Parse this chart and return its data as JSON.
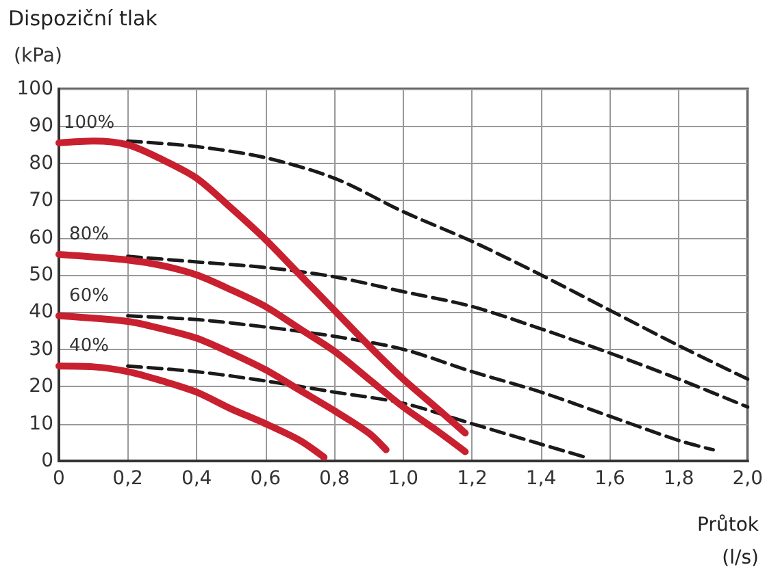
{
  "chart_data": {
    "type": "line",
    "title": "Dispoziční tlak",
    "ylabel": "(kPa)",
    "xlabel": "Průtok\n(l/s)",
    "xlim": [
      0,
      2
    ],
    "xticks": [
      0,
      {
        "value": 0.2,
        "label": "0,2"
      },
      {
        "value": 0.4,
        "label": "0,4"
      },
      {
        "value": 0.6,
        "label": "0,6"
      },
      {
        "value": 0.8,
        "label": "0,8"
      },
      {
        "value": 1,
        "label": "1,0"
      },
      {
        "value": 1.2,
        "label": "1,2"
      },
      {
        "value": 1.4,
        "label": "1,4"
      },
      {
        "value": 1.6,
        "label": "1,6"
      },
      {
        "value": 1.8,
        "label": "1,8"
      },
      {
        "value": 2,
        "label": "2,0"
      }
    ],
    "ylim": [
      0,
      100
    ],
    "yticks": [
      0,
      10,
      20,
      30,
      40,
      50,
      60,
      70,
      80,
      90,
      100
    ],
    "grid": true,
    "marker": "none",
    "series": [
      {
        "name": "100%",
        "color": "#c8202f",
        "line_style": "solid",
        "x": [
          0,
          0.1,
          0.2,
          0.3,
          0.4,
          0.5,
          0.6,
          0.7,
          0.8,
          0.9,
          1.0,
          1.1,
          1.18
        ],
        "values": [
          85.5,
          86,
          85,
          81,
          76,
          68,
          59.5,
          50,
          40.5,
          31,
          22,
          14,
          7.5
        ]
      },
      {
        "name": "80%",
        "color": "#c8202f",
        "line_style": "solid",
        "x": [
          0,
          0.2,
          0.3,
          0.4,
          0.5,
          0.6,
          0.7,
          0.8,
          0.9,
          1.0,
          1.1,
          1.18
        ],
        "values": [
          55.5,
          54,
          52.5,
          50,
          46,
          41.5,
          35.5,
          29.5,
          22,
          14.5,
          8,
          2.5
        ]
      },
      {
        "name": "60%",
        "color": "#c8202f",
        "line_style": "solid",
        "x": [
          0,
          0.2,
          0.3,
          0.4,
          0.5,
          0.6,
          0.7,
          0.8,
          0.9,
          0.95
        ],
        "values": [
          39,
          37.5,
          35.5,
          33,
          29,
          24.5,
          19,
          13.5,
          7.5,
          3
        ]
      },
      {
        "name": "40%",
        "color": "#c8202f",
        "line_style": "solid",
        "x": [
          0,
          0.1,
          0.2,
          0.3,
          0.4,
          0.5,
          0.6,
          0.7,
          0.77
        ],
        "values": [
          25.5,
          25.3,
          24,
          21.5,
          18.5,
          14,
          10,
          5.5,
          1
        ]
      },
      {
        "color": "#1a1a1a",
        "line_style": "dashed",
        "x": [
          0.2,
          0.4,
          0.6,
          0.8,
          1.0,
          1.2,
          1.4,
          1.6,
          1.8,
          2.0
        ],
        "values": [
          86,
          84.5,
          81.5,
          76,
          67,
          59,
          50,
          40.5,
          31,
          22
        ]
      },
      {
        "color": "#1a1a1a",
        "line_style": "dashed",
        "x": [
          0.2,
          0.4,
          0.6,
          0.8,
          1.0,
          1.2,
          1.4,
          1.6,
          1.8,
          2.0
        ],
        "values": [
          55,
          53.5,
          52,
          49.5,
          45.5,
          41.5,
          35.5,
          29,
          22,
          14.5
        ]
      },
      {
        "color": "#1a1a1a",
        "line_style": "dashed",
        "x": [
          0.2,
          0.4,
          0.6,
          0.8,
          1.0,
          1.2,
          1.4,
          1.6,
          1.8,
          1.9
        ],
        "values": [
          39,
          38,
          36,
          33.5,
          30,
          24,
          18.5,
          12,
          5.5,
          3
        ]
      },
      {
        "color": "#1a1a1a",
        "line_style": "dashed",
        "x": [
          0.2,
          0.4,
          0.6,
          0.8,
          1.0,
          1.2,
          1.4,
          1.54
        ],
        "values": [
          25.5,
          24,
          21.5,
          18.5,
          15.5,
          10,
          4.5,
          0.7
        ]
      }
    ]
  }
}
